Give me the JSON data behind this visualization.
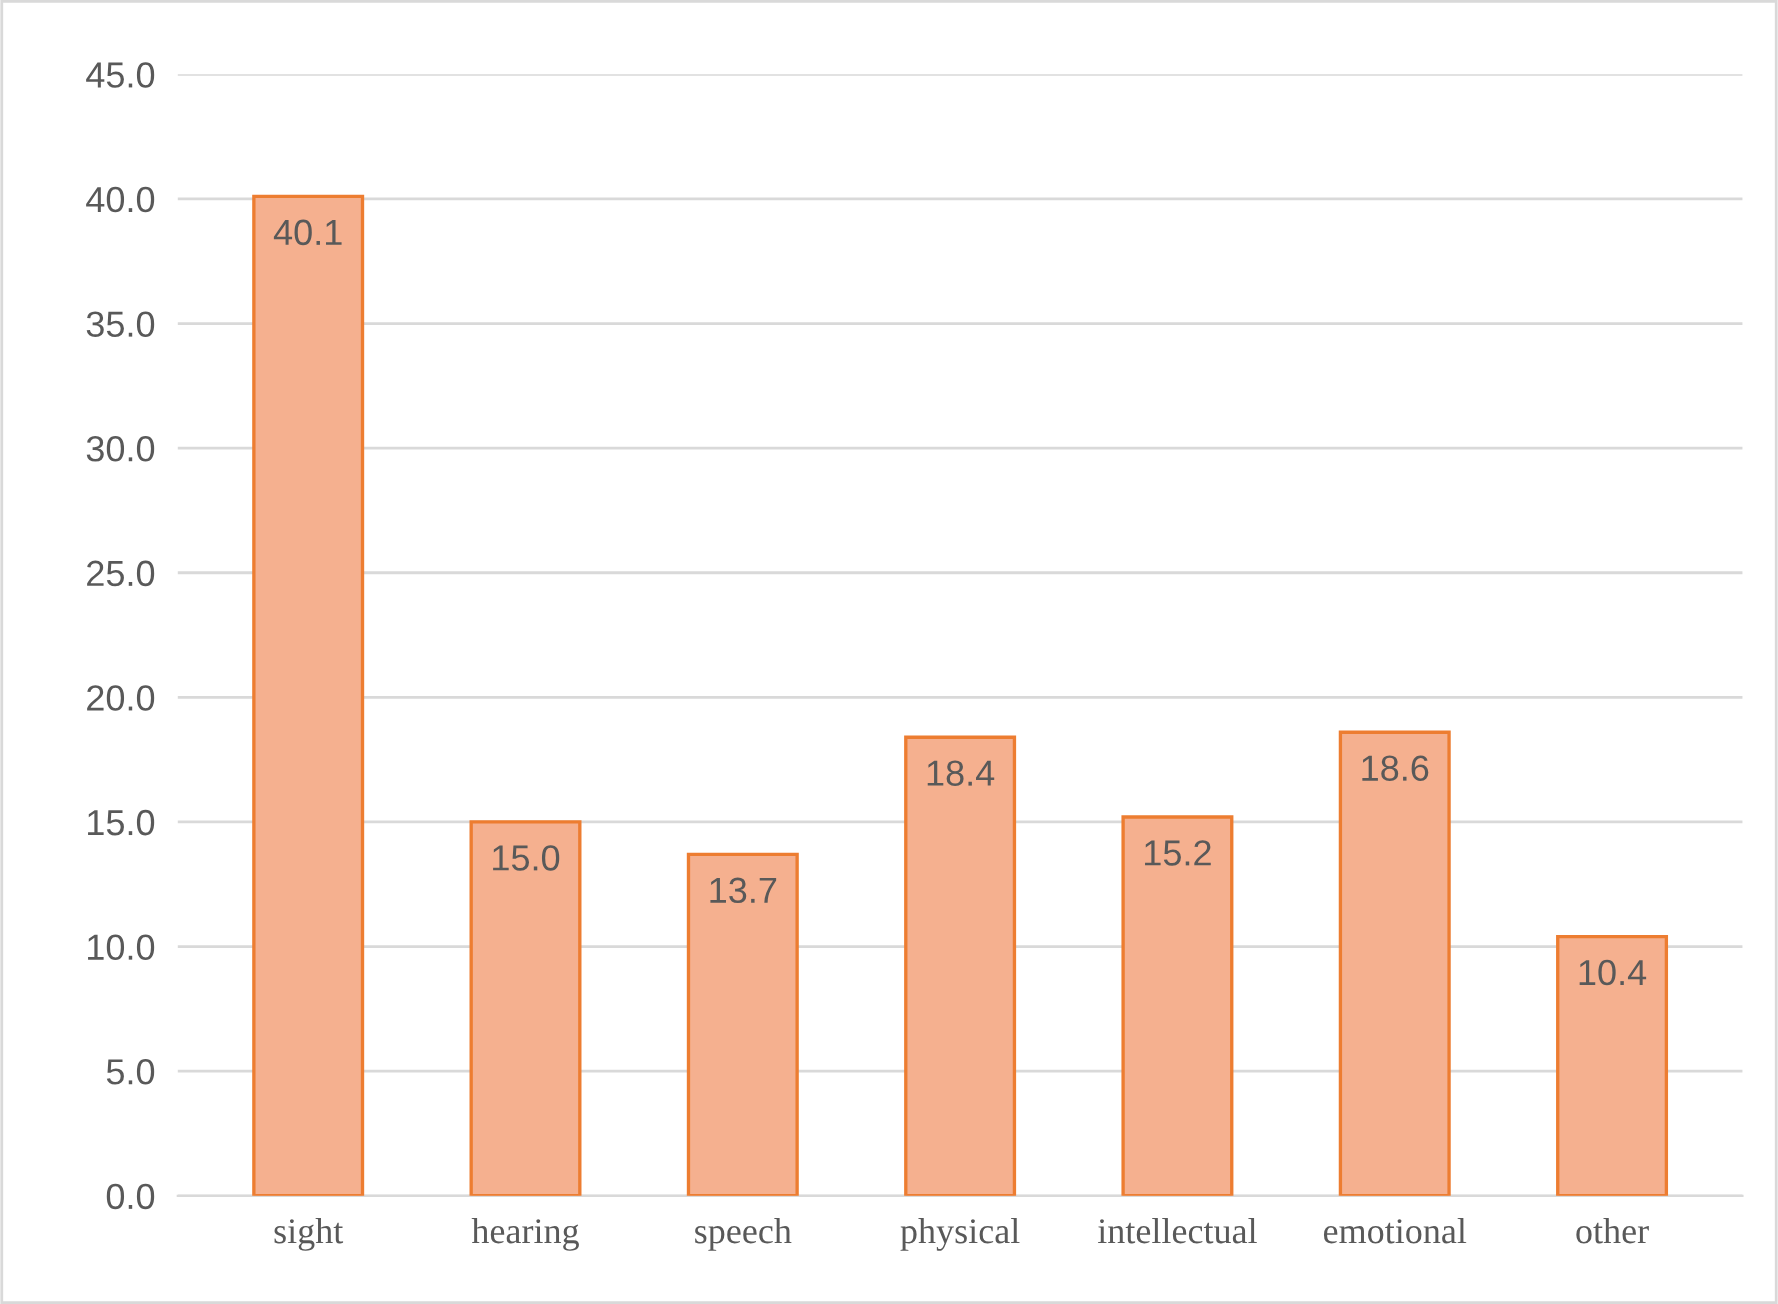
{
  "chart_data": {
    "type": "bar",
    "categories": [
      "sight",
      "hearing",
      "speech",
      "physical",
      "intellectual",
      "emotional",
      "other"
    ],
    "values": [
      40.1,
      15.0,
      13.7,
      18.4,
      15.2,
      18.6,
      10.4
    ],
    "value_labels": [
      "40.1",
      "15.0",
      "13.7",
      "18.4",
      "15.2",
      "18.6",
      "10.4"
    ],
    "color": "#f5b08f",
    "ylim": [
      0,
      45
    ],
    "yticks": [
      {
        "value": 0,
        "label": "0.0"
      },
      {
        "value": 5,
        "label": "5.0"
      },
      {
        "value": 10,
        "label": "10.0"
      },
      {
        "value": 15,
        "label": "15.0"
      },
      {
        "value": 20,
        "label": "20.0"
      },
      {
        "value": 25,
        "label": "25.0"
      },
      {
        "value": 30,
        "label": "30.0"
      },
      {
        "value": 35,
        "label": "35.0"
      },
      {
        "value": 40,
        "label": "40.0"
      },
      {
        "value": 45,
        "label": "45.0"
      }
    ],
    "grid": "y"
  }
}
